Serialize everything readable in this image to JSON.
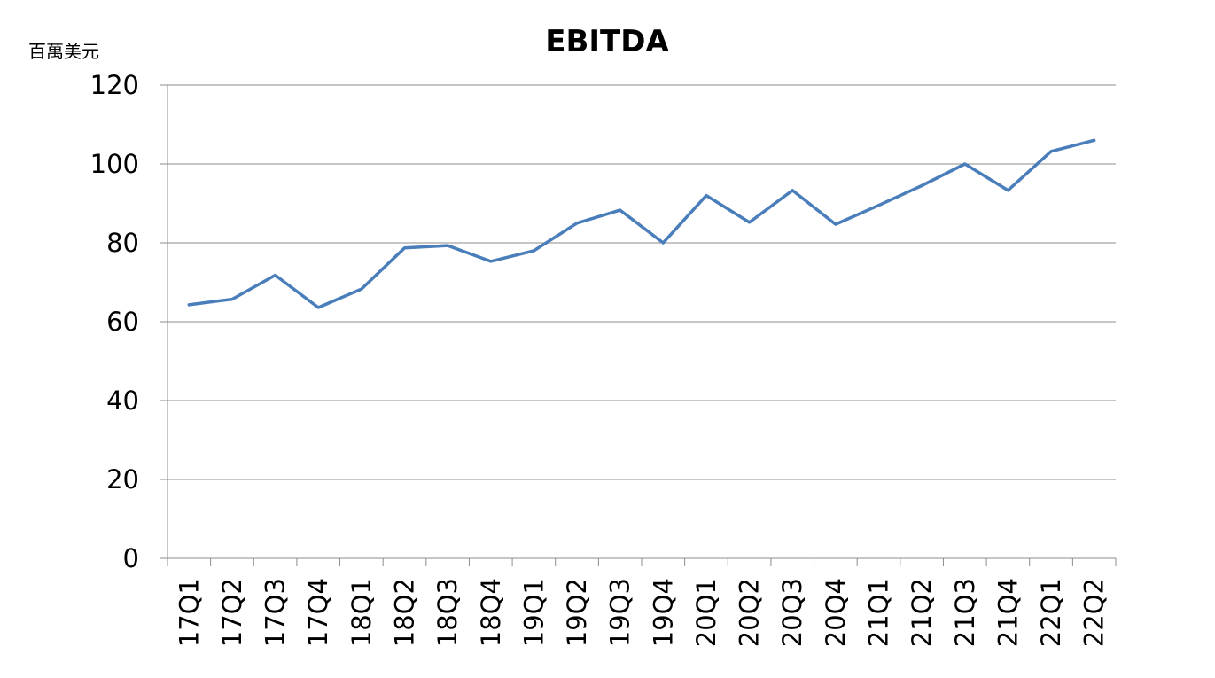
{
  "chart_data": {
    "type": "line",
    "title": "EBITDA",
    "unit_label": "百萬美元",
    "xlabel": "",
    "ylabel": "",
    "ylim": [
      0,
      120
    ],
    "yticks": [
      0,
      20,
      40,
      60,
      80,
      100,
      120
    ],
    "grid": true,
    "legend": "none",
    "categories": [
      "17Q1",
      "17Q2",
      "17Q3",
      "17Q4",
      "18Q1",
      "18Q2",
      "18Q3",
      "18Q4",
      "19Q1",
      "19Q2",
      "19Q3",
      "19Q4",
      "20Q1",
      "20Q2",
      "20Q3",
      "20Q4",
      "21Q1",
      "21Q2",
      "21Q3",
      "21Q4",
      "22Q1",
      "22Q2"
    ],
    "series": [
      {
        "color": "#4a7ebb",
        "values": [
          64.3,
          65.7,
          71.8,
          63.6,
          68.3,
          78.7,
          79.3,
          75.3,
          78.0,
          85.0,
          88.3,
          80.0,
          92.0,
          85.2,
          93.3,
          84.7,
          89.5,
          94.5,
          100.0,
          93.3,
          103.2,
          106.0
        ]
      }
    ]
  }
}
